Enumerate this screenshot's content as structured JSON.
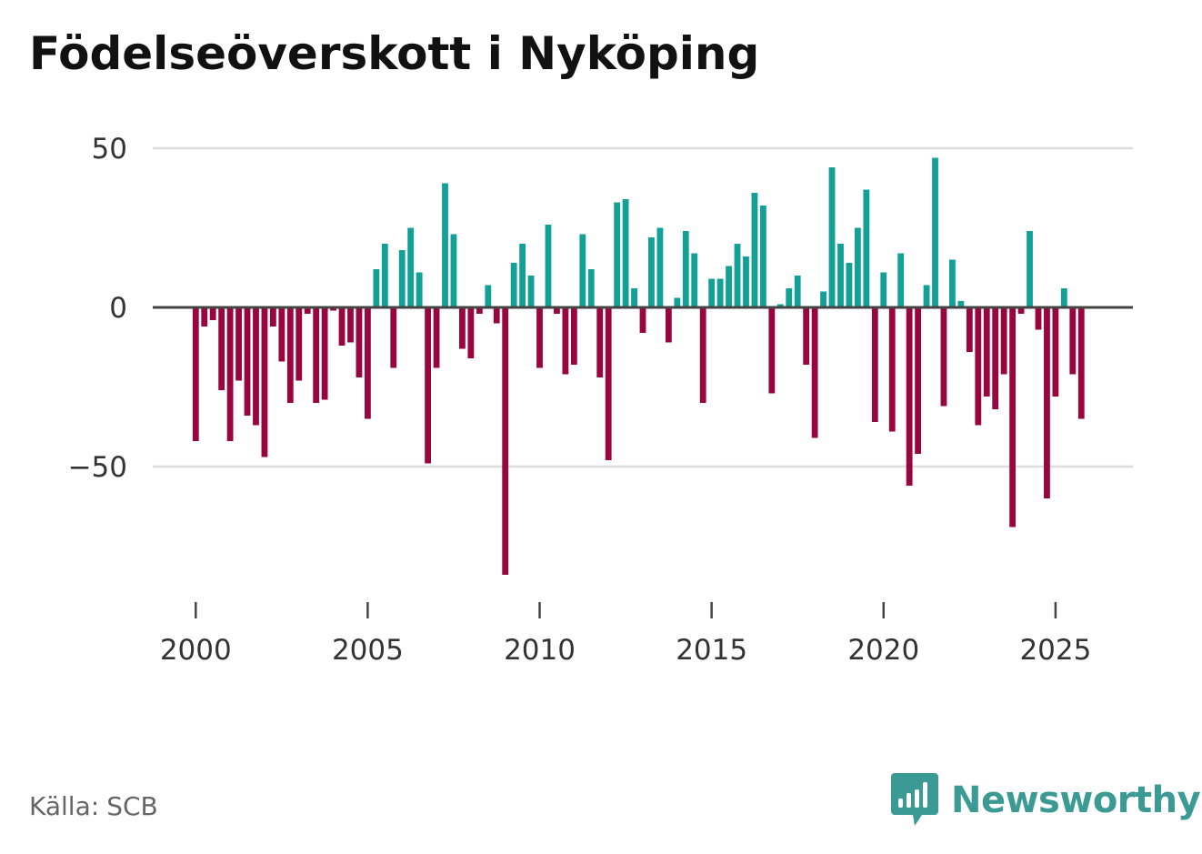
{
  "title": "Födelseöverskott i Nyköping",
  "source": {
    "label": "Källa:",
    "value": "SCB"
  },
  "logo": {
    "text": "Newsworthy"
  },
  "colors": {
    "positive": "#13a096",
    "negative": "#99063f",
    "grid": "#dddddd",
    "zero_line": "#444444",
    "brand": "#3b9a94"
  },
  "chart_data": {
    "type": "bar",
    "title": "Födelseöverskott i Nyköping",
    "xlabel": "",
    "ylabel": "",
    "x_unit": "quarter",
    "x_start": 2000.0,
    "x_step": 0.25,
    "xlim": [
      1998.75,
      2027.25
    ],
    "ylim": [
      -92,
      58
    ],
    "xticks": [
      2000,
      2005,
      2010,
      2015,
      2020,
      2025
    ],
    "yticks": [
      -50,
      0,
      50
    ],
    "ytick_labels": [
      "−50",
      "0",
      "50"
    ],
    "grid": true,
    "values": [
      -42,
      -6,
      -4,
      -26,
      -42,
      -23,
      -34,
      -37,
      -47,
      -6,
      -17,
      -30,
      -23,
      -2,
      -30,
      -29,
      -1,
      -12,
      -11,
      -22,
      -35,
      12,
      20,
      -19,
      18,
      25,
      11,
      -49,
      -19,
      39,
      23,
      -13,
      -16,
      -2,
      7,
      -5,
      -84,
      14,
      20,
      10,
      -19,
      26,
      -2,
      -21,
      -18,
      23,
      12,
      -22,
      -48,
      33,
      34,
      6,
      -8,
      22,
      25,
      -11,
      3,
      24,
      17,
      -30,
      9,
      9,
      13,
      20,
      16,
      36,
      32,
      -27,
      1,
      6,
      10,
      -18,
      -41,
      5,
      44,
      20,
      14,
      25,
      37,
      -36,
      11,
      -39,
      17,
      -56,
      -46,
      7,
      47,
      -31,
      15,
      2,
      -14,
      -37,
      -28,
      -32,
      -21,
      -69,
      -2,
      24,
      -7,
      -60,
      -28,
      6,
      -21,
      -35
    ]
  }
}
